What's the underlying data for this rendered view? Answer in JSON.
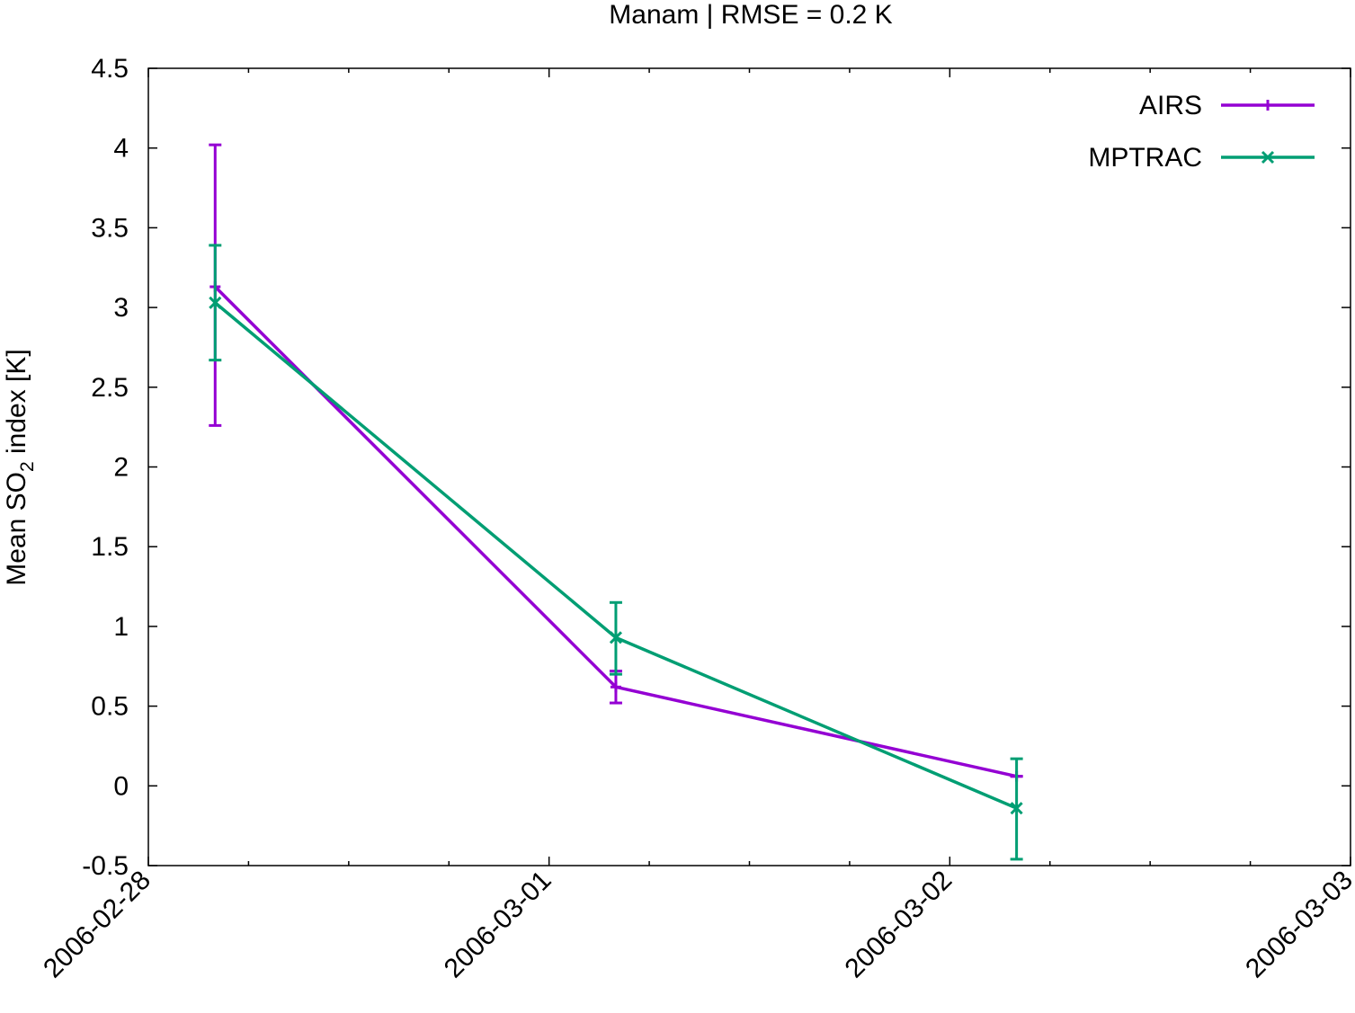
{
  "chart_data": {
    "type": "line",
    "title": "Manam | RMSE = 0.2 K",
    "ylabel": {
      "prefix": "Mean SO",
      "subscript": "2",
      "suffix": " index [K]"
    },
    "xlabel": "",
    "ylim": [
      -0.5,
      4.5
    ],
    "yticks": [
      "-0.5",
      "0",
      "0.5",
      "1",
      "1.5",
      "2",
      "2.5",
      "3",
      "3.5",
      "4",
      "4.5"
    ],
    "xlim": [
      "2006-02-28",
      "2006-03-03"
    ],
    "xticks": [
      "2006-02-28",
      "2006-03-01",
      "2006-03-02",
      "2006-03-03"
    ],
    "x_minor_per_major": 4,
    "grid": false,
    "legend_position": "top-right",
    "series": [
      {
        "name": "AIRS",
        "color": "#9400d3",
        "marker": "plus",
        "points": [
          {
            "x": "2006-02-28 04:00",
            "y": 3.13,
            "err_low": 2.26,
            "err_high": 4.02
          },
          {
            "x": "2006-03-01 04:00",
            "y": 0.62,
            "err_low": 0.52,
            "err_high": 0.72
          },
          {
            "x": "2006-03-02 04:00",
            "y": 0.06,
            "err_low": 0.06,
            "err_high": 0.06
          }
        ]
      },
      {
        "name": "MPTRAC",
        "color": "#009e73",
        "marker": "cross",
        "points": [
          {
            "x": "2006-02-28 04:00",
            "y": 3.03,
            "err_low": 2.67,
            "err_high": 3.39
          },
          {
            "x": "2006-03-01 04:00",
            "y": 0.93,
            "err_low": 0.7,
            "err_high": 1.15
          },
          {
            "x": "2006-03-02 04:00",
            "y": -0.14,
            "err_low": -0.46,
            "err_high": 0.17
          }
        ]
      }
    ]
  }
}
